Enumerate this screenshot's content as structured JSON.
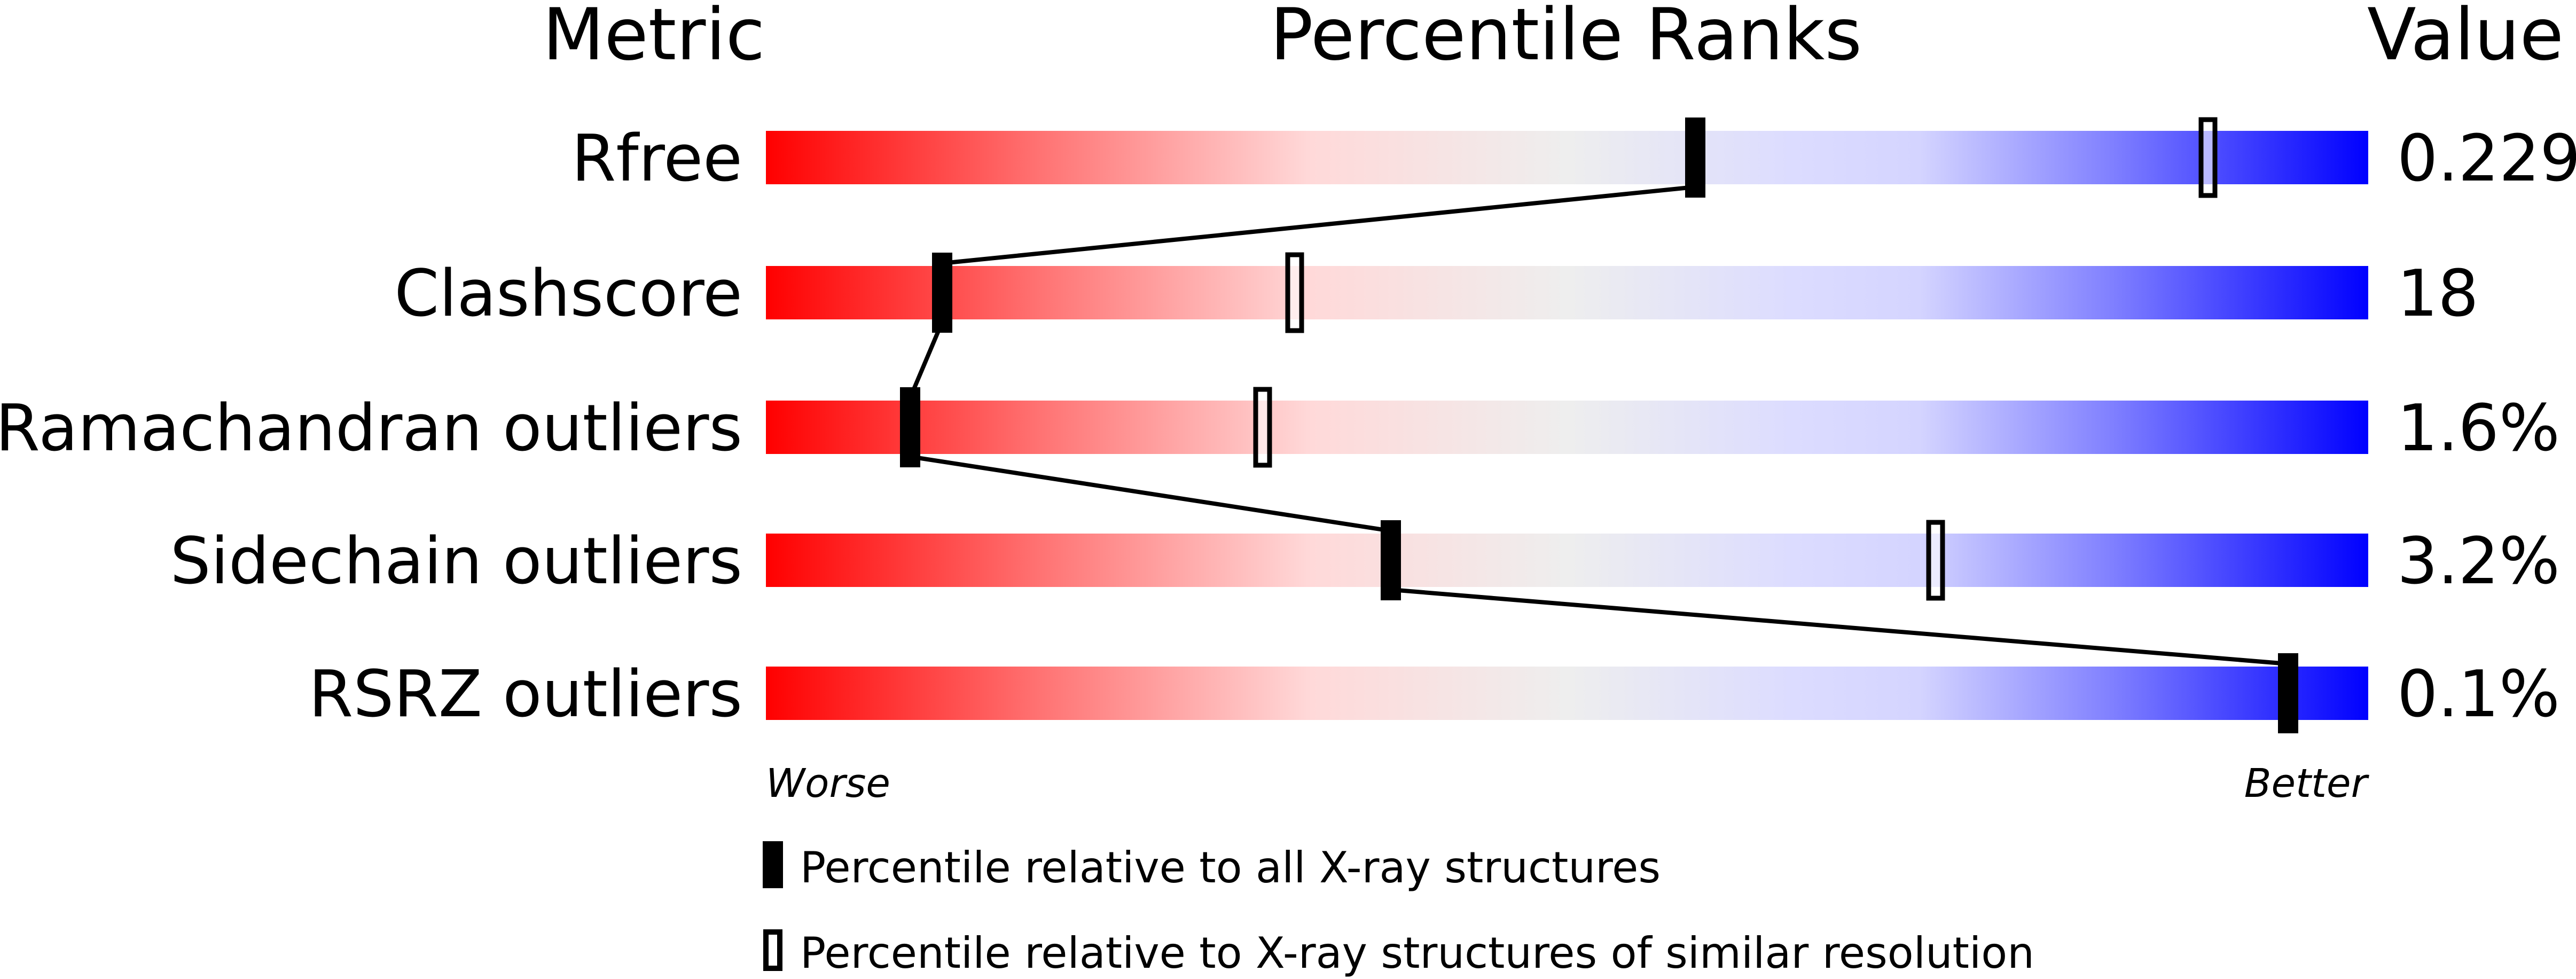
{
  "chart_data": {
    "type": "percentile-bar",
    "headers": {
      "metric": "Metric",
      "ranks": "Percentile Ranks",
      "value": "Value"
    },
    "xlim": [
      0,
      100
    ],
    "rows": [
      {
        "metric": "Rfree",
        "value": "0.229",
        "percentile_all": 58,
        "percentile_similar": 90
      },
      {
        "metric": "Clashscore",
        "value": "18",
        "percentile_all": 11,
        "percentile_similar": 33
      },
      {
        "metric": "Ramachandran outliers",
        "value": "1.6%",
        "percentile_all": 9,
        "percentile_similar": 31
      },
      {
        "metric": "Sidechain outliers",
        "value": "3.2%",
        "percentile_all": 39,
        "percentile_similar": 73
      },
      {
        "metric": "RSRZ outliers",
        "value": "0.1%",
        "percentile_all": 95,
        "percentile_similar": null
      }
    ],
    "axis_left_label": "Worse",
    "axis_right_label": "Better",
    "legend": {
      "all": "Percentile relative to all X-ray structures",
      "similar": "Percentile relative to X-ray structures of similar resolution"
    },
    "colors": {
      "worse": "#ff0000",
      "mid": "#eeeeee",
      "better": "#0000ff",
      "marker": "#000000"
    }
  }
}
